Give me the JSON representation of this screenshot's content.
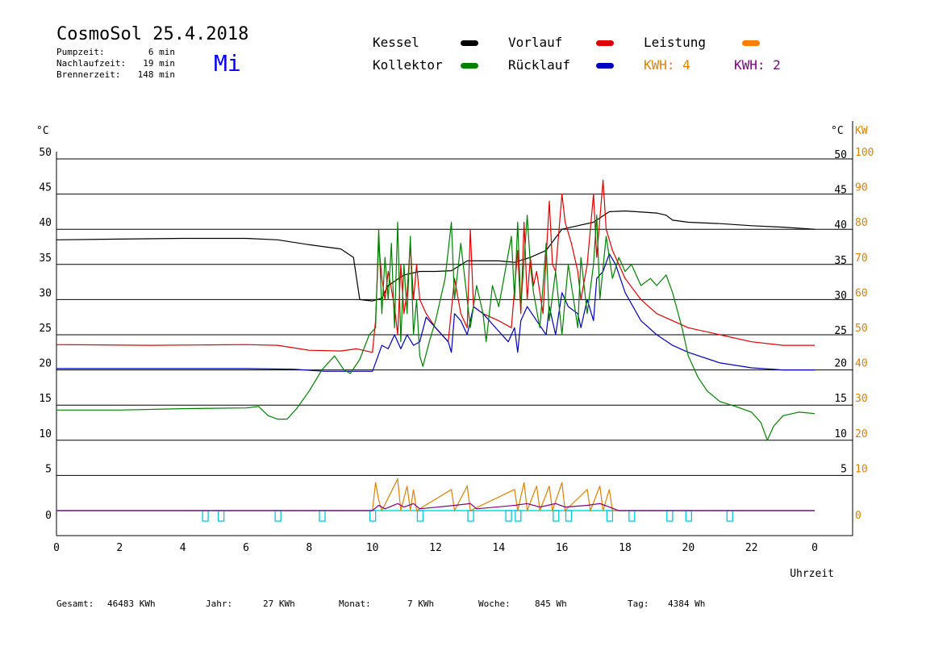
{
  "header": {
    "title": "CosmoSol 25.4.2018",
    "day": "Mi",
    "stats": [
      {
        "label": "Pumpzeit:",
        "value": "6 min"
      },
      {
        "label": "Nachlaufzeit:",
        "value": "19 min"
      },
      {
        "label": "Brennerzeit:",
        "value": "148 min"
      }
    ]
  },
  "legend": {
    "kessel": {
      "label": "Kessel",
      "color": "#000000"
    },
    "vorlauf": {
      "label": "Vorlauf",
      "color": "#e00000"
    },
    "leistung": {
      "label": "Leistung",
      "color": "#ff8000"
    },
    "kollektor": {
      "label": "Kollektor",
      "color": "#008000"
    },
    "ruecklauf": {
      "label": "Rücklauf",
      "color": "#0000c0"
    },
    "kwh1": {
      "label": "KWH: 4",
      "color": "#e08000"
    },
    "kwh2": {
      "label": "KWH: 2",
      "color": "#800080"
    }
  },
  "footer": {
    "gesamt_label": "Gesamt:",
    "gesamt_value": "46483 KWh",
    "jahr_label": "Jahr:",
    "jahr_value": "27 KWh",
    "monat_label": "Monat:",
    "monat_value": "7 KWh",
    "woche_label": "Woche:",
    "woche_value": "845 Wh",
    "tag_label": "Tag:",
    "tag_value": "4384 Wh"
  },
  "chart_data": {
    "type": "line",
    "xlabel": "Uhrzeit",
    "ylabel_left": "°C",
    "ylabel_right_temp": "°C",
    "ylabel_right_power": "KW",
    "xlim": [
      0,
      24
    ],
    "ylim": [
      -3.5,
      55
    ],
    "x_ticks": [
      "0",
      "2",
      "4",
      "6",
      "8",
      "10",
      "12",
      "14",
      "16",
      "18",
      "20",
      "22",
      "0"
    ],
    "y_ticks_left": [
      0,
      5,
      10,
      15,
      20,
      25,
      30,
      35,
      40,
      45,
      50
    ],
    "y_ticks_right": [
      5,
      10,
      15,
      20,
      25,
      30,
      35,
      40,
      45,
      50
    ],
    "y_ticks_power": [
      0,
      10,
      20,
      30,
      40,
      50,
      60,
      70,
      80,
      90,
      100
    ],
    "grid": true,
    "series": [
      {
        "name": "Kessel",
        "color": "#000000",
        "points": [
          [
            0,
            38.5
          ],
          [
            2,
            38.6
          ],
          [
            4,
            38.7
          ],
          [
            6,
            38.7
          ],
          [
            7,
            38.5
          ],
          [
            8,
            37.8
          ],
          [
            9,
            37.2
          ],
          [
            9.4,
            36
          ],
          [
            9.6,
            30
          ],
          [
            10.0,
            29.8
          ],
          [
            10.3,
            30.2
          ],
          [
            10.5,
            32
          ],
          [
            11,
            33.5
          ],
          [
            11.5,
            34
          ],
          [
            12,
            34
          ],
          [
            12.5,
            34.1
          ],
          [
            13,
            35.5
          ],
          [
            14,
            35.5
          ],
          [
            14.5,
            35.3
          ],
          [
            15,
            36
          ],
          [
            15.5,
            37
          ],
          [
            16,
            40
          ],
          [
            16.5,
            40.5
          ],
          [
            17,
            41
          ],
          [
            17.5,
            42.5
          ],
          [
            18,
            42.6
          ],
          [
            19,
            42.3
          ],
          [
            19.3,
            42
          ],
          [
            19.5,
            41.3
          ],
          [
            20,
            41
          ],
          [
            21,
            40.8
          ],
          [
            22,
            40.5
          ],
          [
            23,
            40.3
          ],
          [
            24,
            40
          ]
        ]
      },
      {
        "name": "Vorlauf",
        "color": "#e00000",
        "points": [
          [
            0,
            23.6
          ],
          [
            3,
            23.5
          ],
          [
            6,
            23.6
          ],
          [
            7,
            23.5
          ],
          [
            8,
            22.8
          ],
          [
            9,
            22.7
          ],
          [
            9.5,
            23
          ],
          [
            10.0,
            22.5
          ],
          [
            10.1,
            27
          ],
          [
            10.2,
            38
          ],
          [
            10.3,
            33
          ],
          [
            10.4,
            30
          ],
          [
            10.5,
            34
          ],
          [
            10.7,
            29
          ],
          [
            10.8,
            25
          ],
          [
            10.9,
            35
          ],
          [
            11.0,
            28
          ],
          [
            11.1,
            31
          ],
          [
            11.2,
            38
          ],
          [
            11.3,
            30
          ],
          [
            11.4,
            35
          ],
          [
            11.5,
            30
          ],
          [
            11.7,
            28
          ],
          [
            12,
            26
          ],
          [
            12.4,
            24
          ],
          [
            12.6,
            33
          ],
          [
            12.8,
            28
          ],
          [
            13.0,
            26
          ],
          [
            13.1,
            40
          ],
          [
            13.2,
            29
          ],
          [
            13.5,
            28
          ],
          [
            14,
            27
          ],
          [
            14.4,
            26
          ],
          [
            14.6,
            37
          ],
          [
            14.7,
            28
          ],
          [
            14.8,
            41
          ],
          [
            14.9,
            30
          ],
          [
            15.0,
            36
          ],
          [
            15.1,
            32
          ],
          [
            15.2,
            34
          ],
          [
            15.4,
            28
          ],
          [
            15.6,
            44
          ],
          [
            15.7,
            35
          ],
          [
            15.8,
            34
          ],
          [
            16.0,
            45
          ],
          [
            16.1,
            41
          ],
          [
            16.3,
            38
          ],
          [
            16.5,
            34
          ],
          [
            16.6,
            30
          ],
          [
            16.8,
            35
          ],
          [
            17.0,
            45
          ],
          [
            17.1,
            36
          ],
          [
            17.3,
            47
          ],
          [
            17.4,
            40
          ],
          [
            17.6,
            37
          ],
          [
            18,
            33
          ],
          [
            18.5,
            30
          ],
          [
            19,
            28
          ],
          [
            19.5,
            27
          ],
          [
            20,
            26
          ],
          [
            21,
            25
          ],
          [
            22,
            24
          ],
          [
            23,
            23.5
          ],
          [
            24,
            23.5
          ]
        ]
      },
      {
        "name": "Rücklauf",
        "color": "#0000c0",
        "points": [
          [
            0,
            20.2
          ],
          [
            3,
            20.2
          ],
          [
            6,
            20.2
          ],
          [
            7.5,
            20.1
          ],
          [
            8.5,
            19.8
          ],
          [
            10.0,
            19.8
          ],
          [
            10.1,
            21
          ],
          [
            10.3,
            23.5
          ],
          [
            10.5,
            23
          ],
          [
            10.7,
            25
          ],
          [
            10.9,
            23
          ],
          [
            11.1,
            25
          ],
          [
            11.3,
            23.5
          ],
          [
            11.5,
            24
          ],
          [
            11.7,
            27.5
          ],
          [
            12,
            26
          ],
          [
            12.4,
            24
          ],
          [
            12.5,
            22.5
          ],
          [
            12.6,
            28
          ],
          [
            12.8,
            27
          ],
          [
            13.0,
            25
          ],
          [
            13.2,
            29
          ],
          [
            13.5,
            28
          ],
          [
            14,
            25.5
          ],
          [
            14.3,
            24
          ],
          [
            14.5,
            26
          ],
          [
            14.6,
            22.5
          ],
          [
            14.7,
            27
          ],
          [
            14.9,
            29
          ],
          [
            15.2,
            27
          ],
          [
            15.5,
            25
          ],
          [
            15.6,
            29
          ],
          [
            15.8,
            25
          ],
          [
            16.0,
            31
          ],
          [
            16.2,
            29
          ],
          [
            16.5,
            28
          ],
          [
            16.6,
            26
          ],
          [
            16.8,
            30
          ],
          [
            17.0,
            27
          ],
          [
            17.1,
            33
          ],
          [
            17.3,
            34
          ],
          [
            17.5,
            36.5
          ],
          [
            17.7,
            35
          ],
          [
            18,
            31
          ],
          [
            18.5,
            27
          ],
          [
            19,
            25
          ],
          [
            19.5,
            23.5
          ],
          [
            20,
            22.5
          ],
          [
            21,
            21
          ],
          [
            22,
            20.3
          ],
          [
            23,
            20
          ],
          [
            24,
            20
          ]
        ]
      },
      {
        "name": "Kollektor",
        "color": "#008000",
        "points": [
          [
            0,
            14.3
          ],
          [
            2,
            14.3
          ],
          [
            4,
            14.5
          ],
          [
            6,
            14.6
          ],
          [
            6.4,
            14.8
          ],
          [
            6.7,
            13.5
          ],
          [
            7.0,
            13
          ],
          [
            7.3,
            13
          ],
          [
            7.6,
            14.5
          ],
          [
            8,
            17
          ],
          [
            8.4,
            20
          ],
          [
            8.8,
            22
          ],
          [
            9.1,
            20
          ],
          [
            9.3,
            19.5
          ],
          [
            9.6,
            21.5
          ],
          [
            9.9,
            25
          ],
          [
            10.1,
            26
          ],
          [
            10.2,
            40
          ],
          [
            10.3,
            28
          ],
          [
            10.4,
            36
          ],
          [
            10.5,
            30
          ],
          [
            10.6,
            38
          ],
          [
            10.7,
            26
          ],
          [
            10.8,
            41
          ],
          [
            10.9,
            24
          ],
          [
            11.0,
            35
          ],
          [
            11.1,
            28
          ],
          [
            11.2,
            39
          ],
          [
            11.3,
            25
          ],
          [
            11.4,
            30
          ],
          [
            11.5,
            22
          ],
          [
            11.6,
            20.5
          ],
          [
            11.8,
            24
          ],
          [
            12,
            27
          ],
          [
            12.3,
            33
          ],
          [
            12.5,
            41
          ],
          [
            12.6,
            30
          ],
          [
            12.8,
            38
          ],
          [
            13.0,
            30
          ],
          [
            13.1,
            26
          ],
          [
            13.3,
            32
          ],
          [
            13.5,
            28
          ],
          [
            13.6,
            24
          ],
          [
            13.8,
            32
          ],
          [
            14.0,
            29
          ],
          [
            14.2,
            34
          ],
          [
            14.4,
            39
          ],
          [
            14.5,
            30
          ],
          [
            14.6,
            41
          ],
          [
            14.7,
            29
          ],
          [
            14.9,
            42
          ],
          [
            15.0,
            35
          ],
          [
            15.1,
            31
          ],
          [
            15.3,
            26
          ],
          [
            15.5,
            38
          ],
          [
            15.6,
            27
          ],
          [
            15.8,
            34
          ],
          [
            16.0,
            25
          ],
          [
            16.2,
            35
          ],
          [
            16.5,
            26
          ],
          [
            16.6,
            36
          ],
          [
            16.8,
            28
          ],
          [
            17.0,
            35
          ],
          [
            17.1,
            42
          ],
          [
            17.2,
            30
          ],
          [
            17.4,
            39
          ],
          [
            17.6,
            33
          ],
          [
            17.8,
            36
          ],
          [
            18.0,
            34
          ],
          [
            18.2,
            35
          ],
          [
            18.5,
            32
          ],
          [
            18.8,
            33
          ],
          [
            19.0,
            32
          ],
          [
            19.3,
            33.5
          ],
          [
            19.5,
            31
          ],
          [
            19.8,
            26
          ],
          [
            20,
            22
          ],
          [
            20.3,
            19
          ],
          [
            20.6,
            17
          ],
          [
            21,
            15.5
          ],
          [
            21.5,
            14.8
          ],
          [
            22,
            14
          ],
          [
            22.3,
            12.5
          ],
          [
            22.5,
            10
          ],
          [
            22.7,
            12
          ],
          [
            23,
            13.5
          ],
          [
            23.5,
            14
          ],
          [
            24,
            13.8
          ]
        ]
      }
    ],
    "power_series": [
      {
        "name": "KWH: 4",
        "color": "#e08000",
        "points": [
          [
            0,
            0
          ],
          [
            10.0,
            0
          ],
          [
            10.1,
            8
          ],
          [
            10.2,
            3
          ],
          [
            10.3,
            0
          ],
          [
            10.8,
            9
          ],
          [
            10.9,
            0
          ],
          [
            11.1,
            7
          ],
          [
            11.2,
            0
          ],
          [
            11.3,
            6
          ],
          [
            11.4,
            0
          ],
          [
            12.5,
            6
          ],
          [
            12.6,
            0
          ],
          [
            13.0,
            7
          ],
          [
            13.1,
            0
          ],
          [
            14.5,
            6
          ],
          [
            14.6,
            0
          ],
          [
            14.8,
            8
          ],
          [
            14.9,
            0
          ],
          [
            15.2,
            7
          ],
          [
            15.3,
            0
          ],
          [
            15.6,
            7
          ],
          [
            15.7,
            0
          ],
          [
            16.0,
            8
          ],
          [
            16.1,
            0
          ],
          [
            16.8,
            6
          ],
          [
            16.9,
            0
          ],
          [
            17.2,
            7
          ],
          [
            17.3,
            0
          ],
          [
            17.5,
            6
          ],
          [
            17.6,
            0
          ],
          [
            24,
            0
          ]
        ]
      },
      {
        "name": "KWH: 2",
        "color": "#800080",
        "points": [
          [
            0,
            0
          ],
          [
            10.0,
            0
          ],
          [
            10.2,
            1.5
          ],
          [
            10.4,
            0.5
          ],
          [
            10.8,
            2
          ],
          [
            11.0,
            1
          ],
          [
            11.3,
            2
          ],
          [
            11.5,
            0.5
          ],
          [
            12.6,
            1.5
          ],
          [
            13.1,
            2
          ],
          [
            13.3,
            0.5
          ],
          [
            14.5,
            1.5
          ],
          [
            14.9,
            2
          ],
          [
            15.3,
            1
          ],
          [
            15.8,
            2
          ],
          [
            16.1,
            1
          ],
          [
            16.8,
            1.5
          ],
          [
            17.2,
            2
          ],
          [
            17.5,
            1
          ],
          [
            17.8,
            0
          ],
          [
            24,
            0
          ]
        ]
      }
    ],
    "pump_markers_x": [
      4.7,
      5.2,
      7.0,
      8.4,
      10.0,
      11.5,
      13.1,
      14.3,
      14.6,
      15.8,
      16.2,
      17.5,
      18.2,
      19.4,
      20.0,
      21.3
    ]
  }
}
